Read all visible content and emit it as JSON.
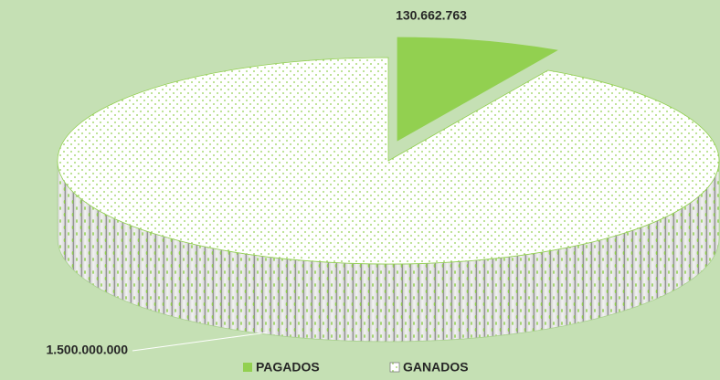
{
  "chart_data": {
    "type": "pie3d",
    "categories": [
      "PAGADOS",
      "GANADOS"
    ],
    "values": [
      130662763,
      1500000000
    ],
    "value_labels": [
      "130.662.763",
      "1.500.000.000"
    ],
    "colors": [
      "#92d050",
      "#ffffff"
    ],
    "legend": "bottom"
  }
}
